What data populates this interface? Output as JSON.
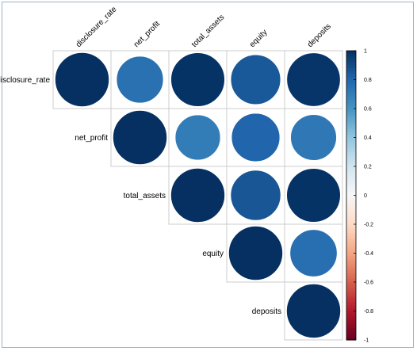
{
  "chart_data": {
    "type": "heatmap",
    "style": "correlation-matrix-upper-circles",
    "variables": [
      "disclosure_rate",
      "net_profit",
      "total_assets",
      "equity",
      "deposits"
    ],
    "matrix": [
      [
        1.0,
        0.75,
        0.99,
        0.85,
        0.98
      ],
      [
        null,
        1.0,
        0.7,
        0.8,
        0.72
      ],
      [
        null,
        null,
        1.0,
        0.86,
        0.99
      ],
      [
        null,
        null,
        null,
        1.0,
        0.76
      ],
      [
        null,
        null,
        null,
        null,
        1.0
      ]
    ],
    "colorbar": {
      "min": -1,
      "max": 1,
      "ticks": [
        "1",
        "0.8",
        "0.6",
        "0.4",
        "0.2",
        "0",
        "-0.2",
        "-0.4",
        "-0.6",
        "-0.8",
        "-1"
      ]
    },
    "colors": {
      "strong_positive": "#053061",
      "positive": "#2166ac",
      "neutral": "#f7f7f7",
      "negative": "#b2182b",
      "strong_negative": "#67001f",
      "grid": "#cccccc"
    }
  }
}
